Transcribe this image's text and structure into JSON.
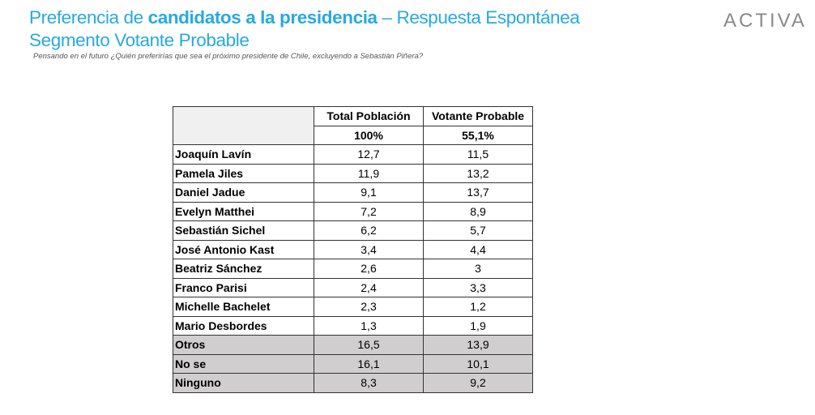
{
  "header": {
    "title_line1_pre": "Preferencia de ",
    "title_line1_bold": "candidatos a la presidencia",
    "title_line1_post": " – Respuesta Espontánea",
    "title_line2": "Segmento Votante Probable",
    "subtitle": "Pensando en el futuro ¿Quién preferirías que sea el próximo presidente de Chile, excluyendo a Sebastián Piñera?",
    "logo": "ACTIVA"
  },
  "table": {
    "columns": [
      "Total Población",
      "Votante Probable"
    ],
    "bases": [
      "100%",
      "55,1%"
    ],
    "rows": [
      {
        "name": "Joaquín Lavín",
        "total": "12,7",
        "votante": "11,5"
      },
      {
        "name": "Pamela Jiles",
        "total": "11,9",
        "votante": "13,2"
      },
      {
        "name": "Daniel Jadue",
        "total": "9,1",
        "votante": "13,7"
      },
      {
        "name": "Evelyn Matthei",
        "total": "7,2",
        "votante": "8,9"
      },
      {
        "name": "Sebastián Sichel",
        "total": "6,2",
        "votante": "5,7"
      },
      {
        "name": "José Antonio Kast",
        "total": "3,4",
        "votante": "4,4"
      },
      {
        "name": "Beatriz Sánchez",
        "total": "2,6",
        "votante": "3"
      },
      {
        "name": "Franco Parisi",
        "total": "2,4",
        "votante": "3,3"
      },
      {
        "name": "Michelle Bachelet",
        "total": "2,3",
        "votante": "1,2"
      },
      {
        "name": "Mario Desbordes",
        "total": "1,3",
        "votante": "1,9"
      },
      {
        "name": "Otros",
        "total": "16,5",
        "votante": "13,9",
        "gray": true
      },
      {
        "name": "No se",
        "total": "16,1",
        "votante": "10,1",
        "gray": true
      },
      {
        "name": "Ninguno",
        "total": "8,3",
        "votante": "9,2",
        "gray": true
      }
    ]
  }
}
